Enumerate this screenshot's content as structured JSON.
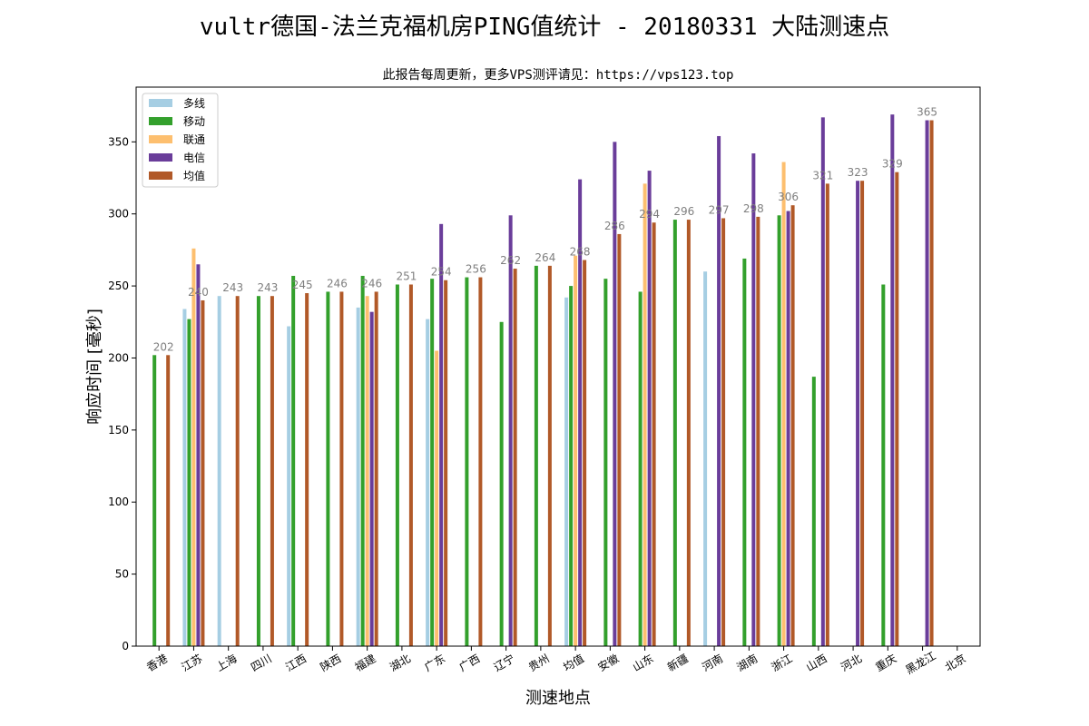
{
  "chart_data": {
    "type": "bar",
    "title": "vultr德国-法兰克福机房PING值统计 - 20180331 大陆测速点",
    "subtitle": "此报告每周更新，更多VPS测评请见：https://vps123.top",
    "xlabel": "测速地点",
    "ylabel": "响应时间 [毫秒]",
    "ylim": [
      0,
      388
    ],
    "yticks": [
      0,
      50,
      100,
      150,
      200,
      250,
      300,
      350
    ],
    "legend_position": "top-left",
    "categories": [
      "香港",
      "江苏",
      "上海",
      "四川",
      "江西",
      "陕西",
      "福建",
      "湖北",
      "广东",
      "广西",
      "辽宁",
      "贵州",
      "均值",
      "安徽",
      "山东",
      "新疆",
      "河南",
      "湖南",
      "浙江",
      "山西",
      "河北",
      "重庆",
      "黑龙江",
      "北京"
    ],
    "series": [
      {
        "name": "多线",
        "color": "#a6cee3",
        "values": [
          null,
          234,
          243,
          null,
          222,
          null,
          235,
          null,
          227,
          null,
          null,
          null,
          242,
          null,
          null,
          null,
          260,
          null,
          null,
          null,
          null,
          null,
          null,
          null
        ]
      },
      {
        "name": "移动",
        "color": "#33a02c",
        "values": [
          202,
          227,
          null,
          243,
          257,
          246,
          257,
          251,
          255,
          256,
          225,
          264,
          250,
          255,
          246,
          296,
          null,
          269,
          299,
          187,
          null,
          251,
          null,
          null
        ]
      },
      {
        "name": "联通",
        "color": "#fdbf6f",
        "values": [
          null,
          276,
          null,
          null,
          null,
          null,
          243,
          null,
          205,
          null,
          null,
          null,
          271,
          null,
          321,
          null,
          null,
          null,
          336,
          null,
          null,
          null,
          null,
          null
        ]
      },
      {
        "name": "电信",
        "color": "#6a3d9a",
        "values": [
          null,
          265,
          null,
          null,
          null,
          null,
          232,
          null,
          293,
          null,
          299,
          null,
          324,
          350,
          330,
          null,
          354,
          342,
          302,
          367,
          323,
          369,
          365,
          null
        ]
      },
      {
        "name": "均值",
        "color": "#b15928",
        "values": [
          202,
          240,
          243,
          243,
          245,
          246,
          246,
          251,
          254,
          256,
          262,
          264,
          268,
          286,
          294,
          296,
          297,
          298,
          306,
          321,
          323,
          329,
          365,
          null
        ]
      }
    ],
    "value_labels": [
      "202",
      "240",
      "243",
      "243",
      "245",
      "246",
      "246",
      "251",
      "254",
      "256",
      "262",
      "264",
      "268",
      "286",
      "294",
      "296",
      "297",
      "298",
      "306",
      "321",
      "323",
      "329",
      "365",
      ""
    ]
  }
}
